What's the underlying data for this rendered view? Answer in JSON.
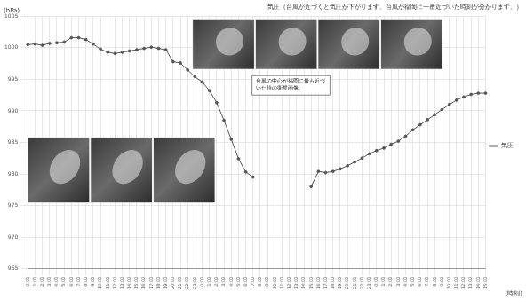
{
  "chart_data": {
    "type": "line",
    "title": "気圧（台風が近づくと気圧が下がります。台風が福岡に一番近づいた時刻が分かります。）",
    "y_label": "(hPa)",
    "x_label": "(時刻)",
    "annotation": "台風の中心が福岡に最も近づいた時の衛星画像。",
    "categories": [
      "0:00",
      "1:00",
      "2:00",
      "3:00",
      "4:00",
      "5:00",
      "6:00",
      "7:00",
      "8:00",
      "9:00",
      "10:00",
      "11:00",
      "12:00",
      "13:00",
      "14:00",
      "15:00",
      "16:00",
      "17:00",
      "18:00",
      "19:00",
      "20:00",
      "21:00",
      "22:00",
      "23:00",
      "0:00",
      "1:00",
      "2:00",
      "3:00",
      "4:00",
      "5:00",
      "6:00",
      "7:00",
      "8:00",
      "9:00",
      "10:00",
      "11:00",
      "12:00",
      "13:00",
      "14:00",
      "15:00",
      "16:00",
      "17:00",
      "18:00",
      "19:00",
      "20:00",
      "21:00",
      "22:00",
      "23:00",
      "0:00",
      "1:00",
      "2:00",
      "3:00",
      "4:00",
      "5:00",
      "6:00",
      "7:00",
      "8:00",
      "9:00",
      "10:00",
      "11:00",
      "12:00",
      "13:00",
      "14:00",
      "15:00"
    ],
    "series": [
      {
        "name": "気圧",
        "color": "#555555",
        "marker": "circle",
        "line_style": "solid",
        "values": [
          1000.5,
          1000.6,
          1000.4,
          1000.7,
          1000.8,
          1000.9,
          1001.6,
          1001.6,
          1001.3,
          1000.6,
          999.8,
          999.3,
          999.1,
          999.3,
          999.5,
          999.7,
          999.9,
          1000.1,
          999.9,
          999.7,
          997.8,
          997.6,
          996.5,
          995.4,
          994.6,
          993.2,
          991.3,
          988.5,
          985.5,
          982.4,
          980.3,
          979.5,
          null,
          null,
          null,
          null,
          null,
          null,
          null,
          978.0,
          980.4,
          980.2,
          980.4,
          980.8,
          981.3,
          981.9,
          982.5,
          983.2,
          983.7,
          984.1,
          984.7,
          985.2,
          986.0,
          987.0,
          987.8,
          988.6,
          989.4,
          990.2,
          991.0,
          991.7,
          992.2,
          992.6,
          992.8,
          992.8
        ]
      }
    ],
    "ylim": [
      965,
      1005
    ],
    "yticks": [
      965,
      970,
      975,
      980,
      985,
      990,
      995,
      1000,
      1005
    ],
    "grid": true,
    "legend": "right"
  }
}
